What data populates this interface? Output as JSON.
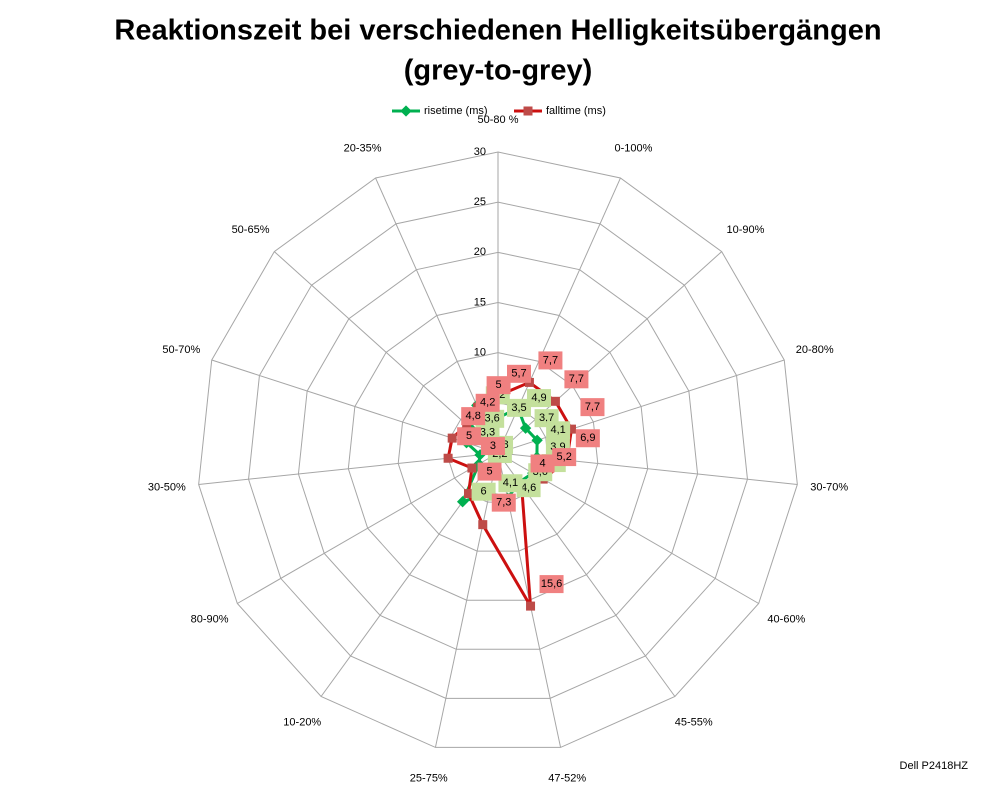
{
  "chart_data": {
    "type": "radar",
    "title_lines": [
      "Reaktionszeit bei verschiedenen Helligkeitsübergängen",
      "(grey-to-grey)"
    ],
    "categories": [
      "50-80 %",
      "0-100%",
      "10-90%",
      "20-80%",
      "30-70%",
      "40-60%",
      "45-55%",
      "47-52%",
      "25-75%",
      "10-20%",
      "80-90%",
      "30-50%",
      "50-70%",
      "50-65%",
      "20-35%"
    ],
    "series": [
      {
        "name": "risetime (ms)",
        "color": "#00b050",
        "label_color": "#c4e09c",
        "values": [
          3.5,
          4.9,
          3.7,
          4.1,
          3.9,
          4,
          3.6,
          4.6,
          4.1,
          6,
          2.2,
          1.8,
          3.3,
          3.6,
          5.2
        ],
        "value_labels": [
          "3,5",
          "4,9",
          "3,7",
          "4,1",
          "3,9",
          "4",
          "3,6",
          "4,6",
          "4,1",
          "6",
          "2,2",
          "1,8",
          "3,3",
          "3,6",
          "5,2"
        ]
      },
      {
        "name": "falltime (ms)",
        "color": "#cc1010",
        "label_color": "#f08080",
        "values": [
          5.7,
          7.7,
          7.7,
          7.7,
          6.9,
          5.2,
          4,
          15.6,
          7.3,
          5,
          3,
          5,
          4.8,
          4.2,
          5
        ],
        "value_labels": [
          "5,7",
          "7,7",
          "7,7",
          "7,7",
          "6,9",
          "5,2",
          "4",
          "15,6",
          "7,3",
          "5",
          "3",
          "5",
          "4,8",
          "4,2",
          "5"
        ]
      }
    ],
    "ylim": [
      0,
      30
    ],
    "yticks": [
      0,
      5,
      10,
      15,
      20,
      25,
      30
    ],
    "grid": true,
    "legend": "top",
    "footer": "Dell P2418HZ"
  }
}
